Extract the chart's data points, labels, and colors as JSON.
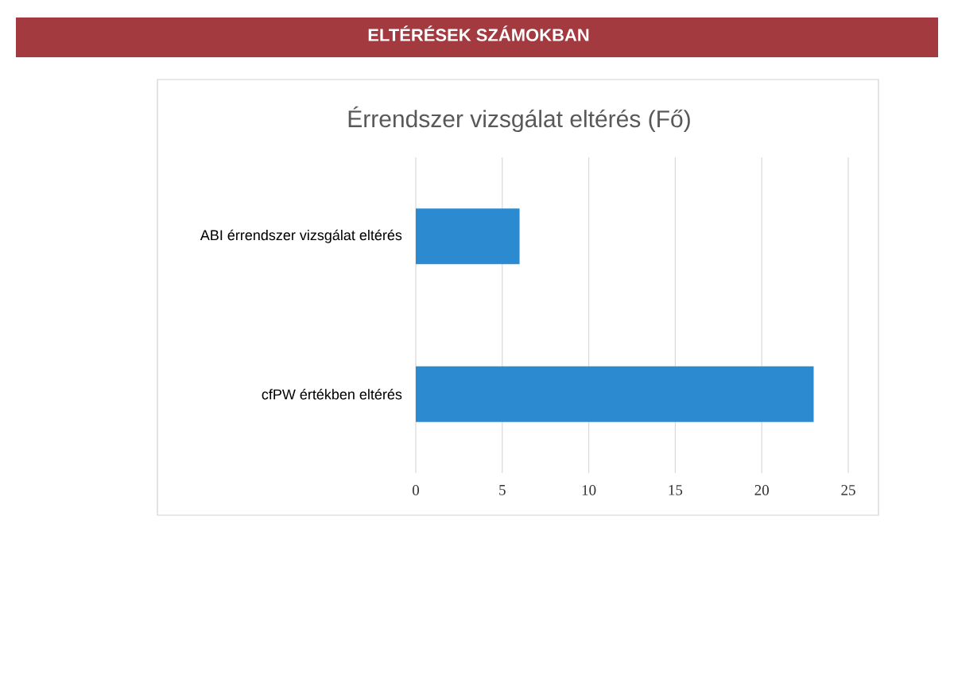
{
  "chart_data": {
    "type": "bar",
    "orientation": "horizontal",
    "title": "ELTÉRÉSEK SZÁMOKBAN",
    "subtitle": "Érrendszer vizsgálat eltérés (Fő)",
    "categories": [
      "ABI érrendszer vizsgálat eltérés",
      "cfPW értékben eltérés"
    ],
    "values": [
      6,
      23
    ],
    "color": "#2b8ad0",
    "xlim": [
      0,
      25
    ],
    "xticks": [
      0,
      5,
      10,
      15,
      20,
      25
    ],
    "grid": "x"
  }
}
